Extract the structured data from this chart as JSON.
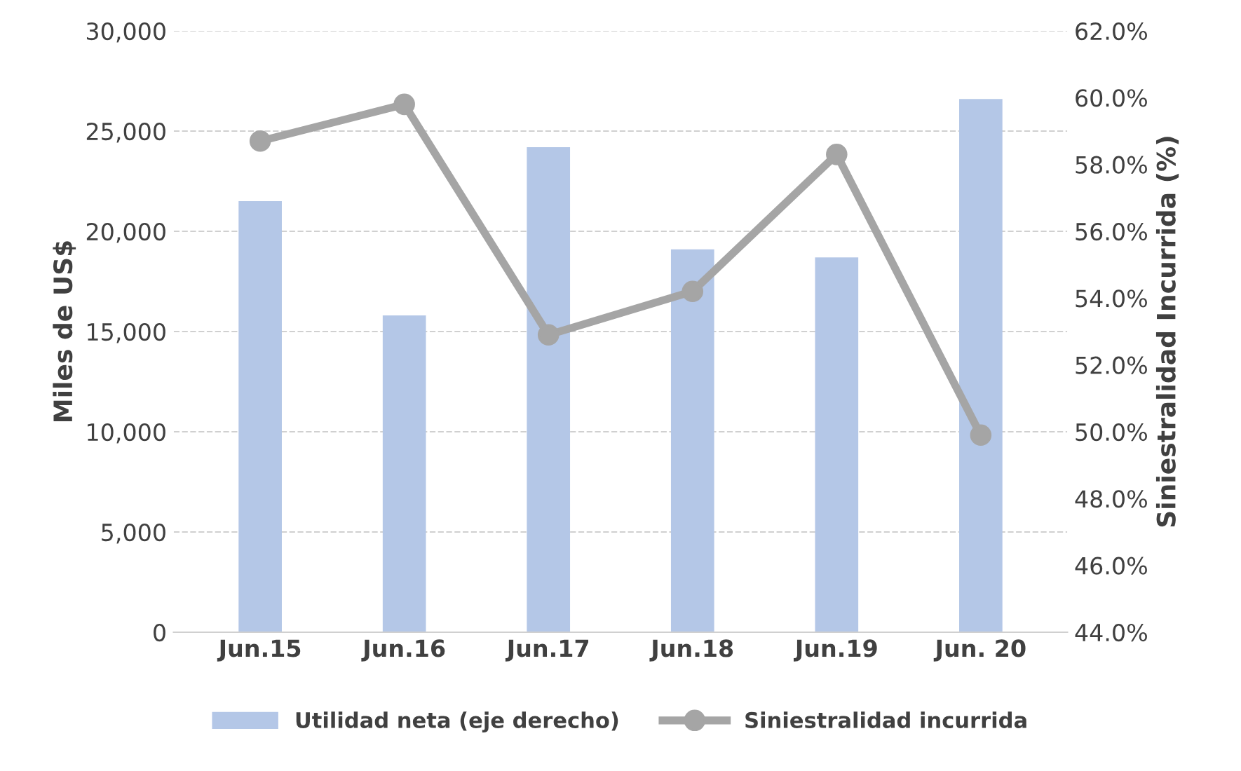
{
  "chart_data": {
    "type": "bar",
    "ylabel": "Miles de US$",
    "y2label": "Siniestralidad Incurrida (%)",
    "categories": [
      "Jun.15",
      "Jun.16",
      "Jun.17",
      "Jun.18",
      "Jun.19",
      "Jun. 20"
    ],
    "series": [
      {
        "name": "Utilidad neta (eje derecho)",
        "color": "#b4c7e7",
        "values": [
          21500,
          15800,
          24200,
          19100,
          18700,
          26600
        ]
      },
      {
        "name": "Siniestralidad incurrida",
        "type": "line",
        "axis": "y2",
        "color": "#a5a5a5",
        "marker": "circle",
        "values": [
          58.7,
          59.8,
          52.9,
          54.2,
          58.3,
          49.9
        ]
      }
    ],
    "ylim": [
      0,
      30000
    ],
    "yticks": [
      {
        "value": 0,
        "label": "0"
      },
      {
        "value": 5000,
        "label": "5,000"
      },
      {
        "value": 10000,
        "label": "10,000"
      },
      {
        "value": 15000,
        "label": "15,000"
      },
      {
        "value": 20000,
        "label": "20,000"
      },
      {
        "value": 25000,
        "label": "25,000"
      },
      {
        "value": 30000,
        "label": "30,000"
      }
    ],
    "y2lim": [
      44,
      62
    ],
    "y2ticks": [
      {
        "value": 44,
        "label": "44.0%"
      },
      {
        "value": 46,
        "label": "46.0%"
      },
      {
        "value": 48,
        "label": "48.0%"
      },
      {
        "value": 50,
        "label": "50.0%"
      },
      {
        "value": 52,
        "label": "52.0%"
      },
      {
        "value": 54,
        "label": "54.0%"
      },
      {
        "value": 56,
        "label": "56.0%"
      },
      {
        "value": 58,
        "label": "58.0%"
      },
      {
        "value": 60,
        "label": "60.0%"
      },
      {
        "value": 62,
        "label": "62.0%"
      }
    ],
    "grid": "y",
    "legend": "bottom"
  }
}
